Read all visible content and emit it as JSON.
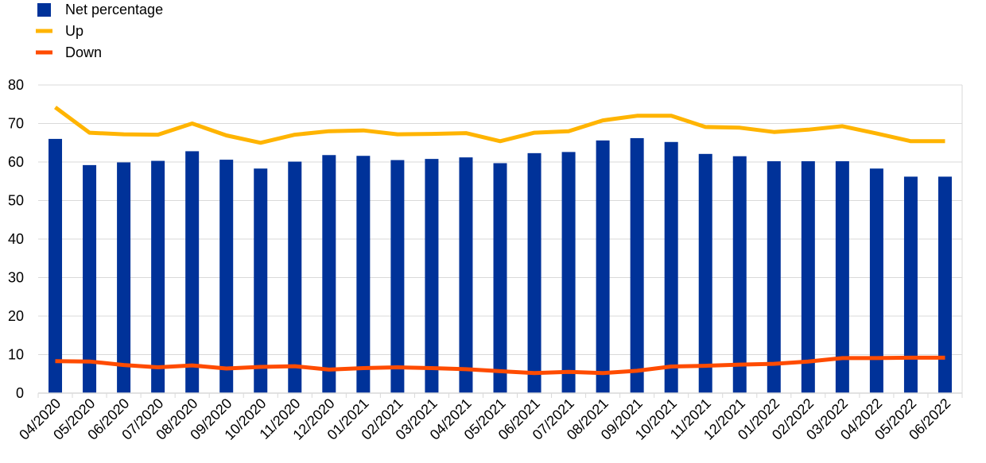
{
  "colors": {
    "net": "#003299",
    "up": "#FFB400",
    "down": "#FF4B00",
    "grid": "#D9D9D9",
    "axis": "#D9D9D9"
  },
  "legend": [
    {
      "key": "net",
      "label": "Net percentage",
      "kind": "box"
    },
    {
      "key": "up",
      "label": "Up",
      "kind": "line"
    },
    {
      "key": "down",
      "label": "Down",
      "kind": "line"
    }
  ],
  "chart_data": {
    "type": "bar",
    "title": "",
    "xlabel": "",
    "ylabel": "",
    "ylim": [
      0,
      80
    ],
    "yticks": [
      0,
      10,
      20,
      30,
      40,
      50,
      60,
      70,
      80
    ],
    "grid": true,
    "legend_position": "top-left",
    "categories": [
      "04/2020",
      "05/2020",
      "06/2020",
      "07/2020",
      "08/2020",
      "09/2020",
      "10/2020",
      "11/2020",
      "12/2020",
      "01/2021",
      "02/2021",
      "03/2021",
      "04/2021",
      "05/2021",
      "06/2021",
      "07/2021",
      "08/2021",
      "09/2021",
      "10/2021",
      "11/2021",
      "12/2021",
      "01/2022",
      "02/2022",
      "03/2022",
      "04/2022",
      "05/2022",
      "06/2022"
    ],
    "series": [
      {
        "name": "Net percentage",
        "key": "net",
        "type": "bar",
        "values": [
          66,
          59.2,
          59.9,
          60.3,
          62.8,
          60.6,
          58.3,
          60.1,
          61.8,
          61.6,
          60.5,
          60.8,
          61.2,
          59.7,
          62.3,
          62.6,
          65.6,
          66.2,
          65.2,
          62.1,
          61.5,
          60.2,
          60.2,
          60.2,
          58.3,
          56.2,
          56.2
        ]
      },
      {
        "name": "Up",
        "key": "up",
        "type": "line",
        "values": [
          74.2,
          67.6,
          67.2,
          67.1,
          70,
          66.9,
          65,
          67.1,
          68,
          68.2,
          67.2,
          67.3,
          67.5,
          65.4,
          67.6,
          68,
          70.8,
          72,
          72,
          69.1,
          68.9,
          67.8,
          68.4,
          69.3,
          67.4,
          65.4,
          65.4
        ]
      },
      {
        "name": "Down",
        "key": "down",
        "type": "line",
        "values": [
          8.3,
          8.2,
          7.3,
          6.7,
          7.2,
          6.4,
          6.8,
          7,
          6.1,
          6.5,
          6.7,
          6.5,
          6.2,
          5.7,
          5.2,
          5.5,
          5.2,
          5.8,
          6.9,
          7.1,
          7.4,
          7.6,
          8.2,
          9.1,
          9.1,
          9.2,
          9.2
        ]
      }
    ]
  }
}
